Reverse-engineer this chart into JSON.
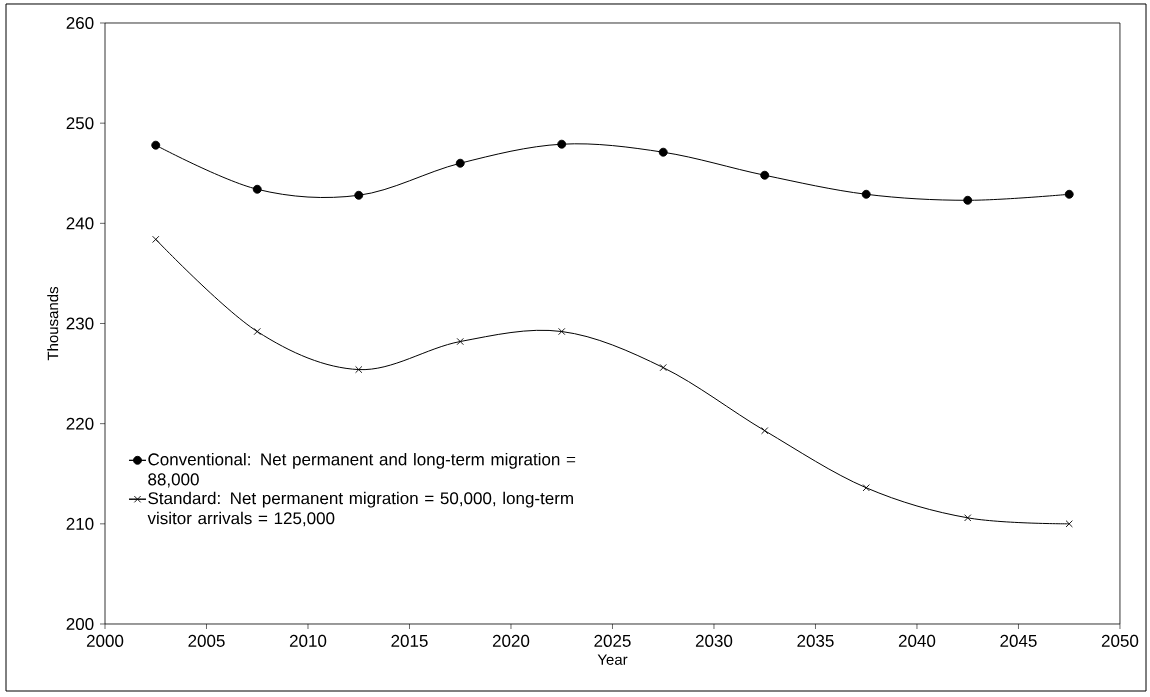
{
  "chart_data": {
    "type": "line",
    "xlabel": "Year",
    "ylabel": "Thousands",
    "x": [
      2002.5,
      2007.5,
      2012.5,
      2017.5,
      2022.5,
      2027.5,
      2032.5,
      2037.5,
      2042.5,
      2047.5
    ],
    "series": [
      {
        "name": "Conventional: Net permanent and long-term migration = 88,000",
        "color": "#000000",
        "marker": "circle",
        "values": [
          247.8,
          243.4,
          242.8,
          246.0,
          247.9,
          247.1,
          244.8,
          242.9,
          242.3,
          242.9
        ]
      },
      {
        "name": "Standard: Net permanent migration = 50,000, long-term visitor arrivals = 125,000",
        "color": "#000000",
        "marker": "cross",
        "values": [
          238.4,
          229.2,
          225.4,
          228.2,
          229.2,
          225.6,
          219.3,
          213.6,
          210.6,
          210.0
        ]
      }
    ],
    "xlim": [
      2000,
      2050
    ],
    "ylim": [
      200,
      260
    ],
    "xticks": [
      2000,
      2005,
      2010,
      2015,
      2020,
      2025,
      2030,
      2035,
      2040,
      2045,
      2050
    ],
    "yticks": [
      200,
      210,
      220,
      230,
      240,
      250,
      260
    ],
    "grid": false,
    "legend": "bottom left",
    "line_style": "solid"
  }
}
